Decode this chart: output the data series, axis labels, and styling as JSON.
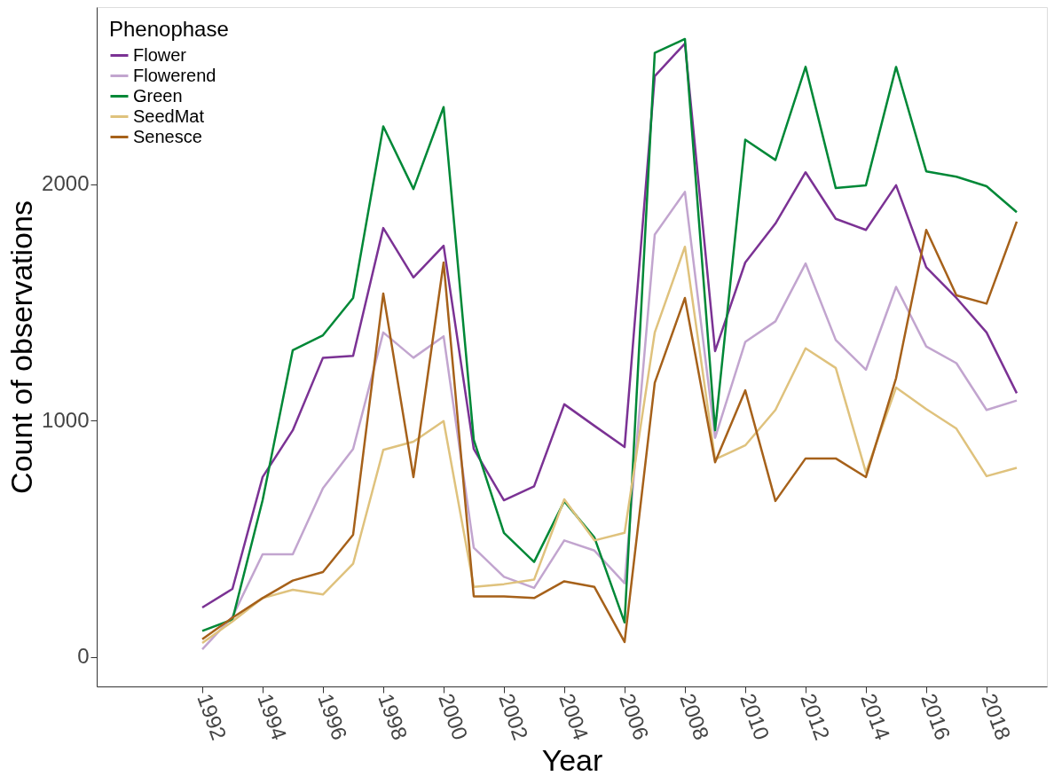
{
  "chart_data": {
    "type": "line",
    "xlabel": "Year",
    "ylabel": "Count of observations",
    "legend_title": "Phenophase",
    "legend": "top left",
    "grid": false,
    "line_style": "solid",
    "marker": "none",
    "x": [
      1992,
      1993,
      1994,
      1995,
      1996,
      1997,
      1998,
      1999,
      2000,
      2001,
      2002,
      2003,
      2004,
      2005,
      2006,
      2007,
      2008,
      2009,
      2010,
      2011,
      2012,
      2013,
      2014,
      2015,
      2016,
      2017,
      2018,
      2019
    ],
    "xlim": [
      1988.5,
      2020
    ],
    "xticks": [
      1992,
      1994,
      1996,
      1998,
      2000,
      2002,
      2004,
      2006,
      2008,
      2010,
      2012,
      2014,
      2016,
      2018
    ],
    "ylim": [
      -125,
      2750
    ],
    "yticks": [
      0,
      1000,
      2000
    ],
    "series": [
      {
        "name": "Flower",
        "color": "#7b3294",
        "values": [
          209,
          288,
          761,
          959,
          1266,
          1274,
          1815,
          1606,
          1740,
          880,
          663,
          722,
          1069,
          978,
          888,
          2458,
          2596,
          1294,
          1669,
          1834,
          2051,
          1854,
          1807,
          1996,
          1649,
          1519,
          1373,
          1116
        ]
      },
      {
        "name": "Flowerend",
        "color": "#c2a5cf",
        "values": [
          32,
          170,
          434,
          434,
          714,
          880,
          1373,
          1266,
          1357,
          462,
          339,
          292,
          493,
          450,
          312,
          1787,
          1968,
          927,
          1333,
          1420,
          1665,
          1341,
          1215,
          1566,
          1314,
          1243,
          1045,
          1085
        ]
      },
      {
        "name": "Green",
        "color": "#008837",
        "values": [
          110,
          158,
          663,
          1298,
          1361,
          1519,
          2245,
          1980,
          2327,
          919,
          525,
          402,
          659,
          505,
          146,
          2556,
          2615,
          959,
          2189,
          2103,
          2497,
          1984,
          1996,
          2497,
          2055,
          2032,
          1992,
          1882
        ]
      },
      {
        "name": "SeedMat",
        "color": "#dfc27d",
        "values": [
          59,
          150,
          249,
          284,
          264,
          394,
          876,
          911,
          998,
          296,
          308,
          327,
          667,
          493,
          525,
          1373,
          1736,
          836,
          895,
          1045,
          1306,
          1223,
          781,
          1140,
          1049,
          966,
          765,
          800
        ]
      },
      {
        "name": "Senesce",
        "color": "#a6611a",
        "values": [
          75,
          166,
          249,
          323,
          359,
          517,
          1538,
          761,
          1669,
          256,
          256,
          249,
          320,
          296,
          63,
          1160,
          1519,
          824,
          1128,
          660,
          840,
          840,
          761,
          1180,
          1807,
          1530,
          1495,
          1842
        ]
      }
    ]
  }
}
